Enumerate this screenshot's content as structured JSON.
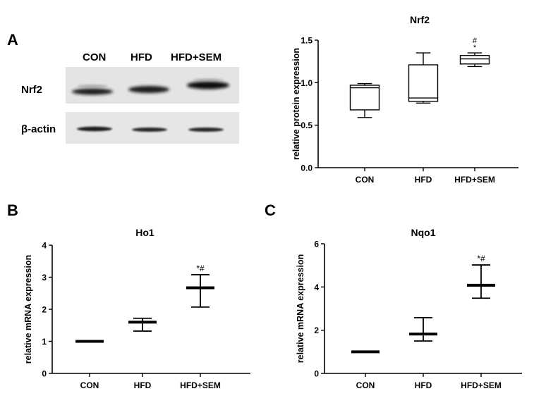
{
  "panels": {
    "a": "A",
    "b": "B",
    "c": "C"
  },
  "blot": {
    "lanes": [
      "CON",
      "HFD",
      "HFD+SEM"
    ],
    "rows": [
      "Nrf2",
      "β-actin"
    ]
  },
  "chart_data": [
    {
      "type": "box",
      "title": "Nrf2",
      "xlabel": "",
      "ylabel": "relative protein expression",
      "categories": [
        "CON",
        "HFD",
        "HFD+SEM"
      ],
      "ylim": [
        0.0,
        1.5
      ],
      "yticks": [
        "0.0",
        "0.5",
        "1.0",
        "1.5"
      ],
      "ytick_values": [
        0.0,
        0.5,
        1.0,
        1.5
      ],
      "boxes": [
        {
          "min": 0.59,
          "q1": 0.68,
          "median": 0.94,
          "q3": 0.97,
          "max": 0.99
        },
        {
          "min": 0.76,
          "q1": 0.78,
          "median": 0.82,
          "q3": 1.21,
          "max": 1.35
        },
        {
          "min": 1.19,
          "q1": 1.22,
          "median": 1.28,
          "q3": 1.32,
          "max": 1.35
        }
      ],
      "annotations": [
        {
          "category": 2,
          "lines": [
            "#",
            "*"
          ]
        }
      ]
    },
    {
      "type": "mean_error",
      "title": "Ho1",
      "xlabel": "",
      "ylabel": "relative mRNA expression",
      "categories": [
        "CON",
        "HFD",
        "HFD+SEM"
      ],
      "ylim": [
        0,
        4
      ],
      "yticks": [
        "0",
        "1",
        "2",
        "3",
        "4"
      ],
      "ytick_values": [
        0,
        1,
        2,
        3,
        4
      ],
      "points": [
        {
          "mean": 1.0,
          "low": 1.0,
          "high": 1.0
        },
        {
          "mean": 1.6,
          "low": 1.32,
          "high": 1.72
        },
        {
          "mean": 2.67,
          "low": 2.07,
          "high": 3.08
        }
      ],
      "annotations": [
        {
          "category": 2,
          "lines": [
            "*#"
          ]
        }
      ]
    },
    {
      "type": "mean_error",
      "title": "Nqo1",
      "xlabel": "",
      "ylabel": "relative mRNA expression",
      "categories": [
        "CON",
        "HFD",
        "HFD+SEM"
      ],
      "ylim": [
        0,
        6
      ],
      "yticks": [
        "0",
        "2",
        "4",
        "6"
      ],
      "ytick_values": [
        0,
        2,
        4,
        6
      ],
      "points": [
        {
          "mean": 1.0,
          "low": 1.0,
          "high": 1.0
        },
        {
          "mean": 1.82,
          "low": 1.5,
          "high": 2.58
        },
        {
          "mean": 4.08,
          "low": 3.48,
          "high": 5.02
        }
      ],
      "annotations": [
        {
          "category": 2,
          "lines": [
            "*#"
          ]
        }
      ]
    }
  ]
}
